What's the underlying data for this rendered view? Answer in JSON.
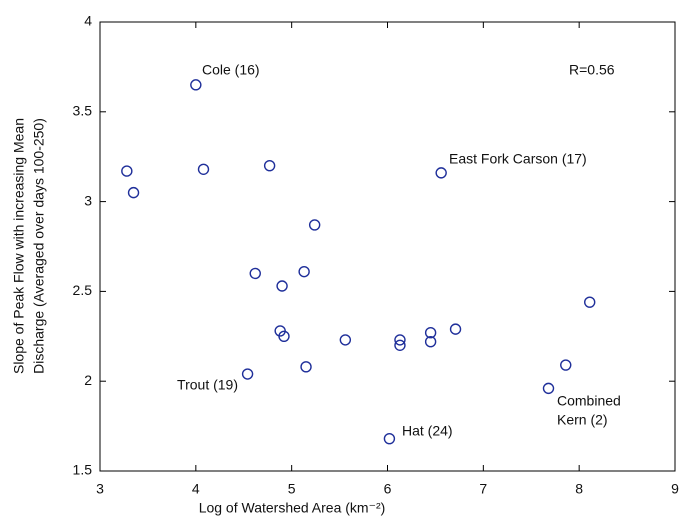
{
  "chart_data": {
    "type": "scatter",
    "x_label": "Log of Watershed Area (km⁻²)",
    "y_label": [
      "Slope of Peak Flow with increasing Mean",
      "Discharge (Averaged over days 100-250)"
    ],
    "color": "#1f2f9a",
    "x": [
      4.0,
      3.28,
      3.35,
      4.08,
      4.77,
      5.24,
      4.62,
      5.13,
      4.9,
      6.56,
      8.11,
      4.88,
      4.92,
      5.56,
      6.13,
      6.13,
      6.45,
      6.45,
      6.71,
      4.54,
      5.15,
      7.86,
      7.68,
      6.02
    ],
    "y": [
      3.65,
      3.17,
      3.05,
      3.18,
      3.2,
      2.87,
      2.6,
      2.61,
      2.53,
      3.16,
      2.44,
      2.28,
      2.25,
      2.23,
      2.23,
      2.2,
      2.27,
      2.22,
      2.29,
      2.04,
      2.08,
      2.09,
      1.96,
      1.68
    ],
    "xlim": [
      3,
      9
    ],
    "xticks": [
      3,
      4,
      5,
      6,
      7,
      8,
      9
    ],
    "ylim": [
      1.5,
      4
    ],
    "yticks": [
      1.5,
      2,
      2.5,
      3,
      3.5,
      4
    ],
    "annotations": [
      [
        "Cole (16)"
      ],
      [
        "East Fork Carson (17)"
      ],
      [
        "Trout (19)"
      ],
      [
        "Hat (24)"
      ],
      [
        "Combined",
        "Kern (2)"
      ],
      [
        "R=0.56"
      ]
    ]
  }
}
